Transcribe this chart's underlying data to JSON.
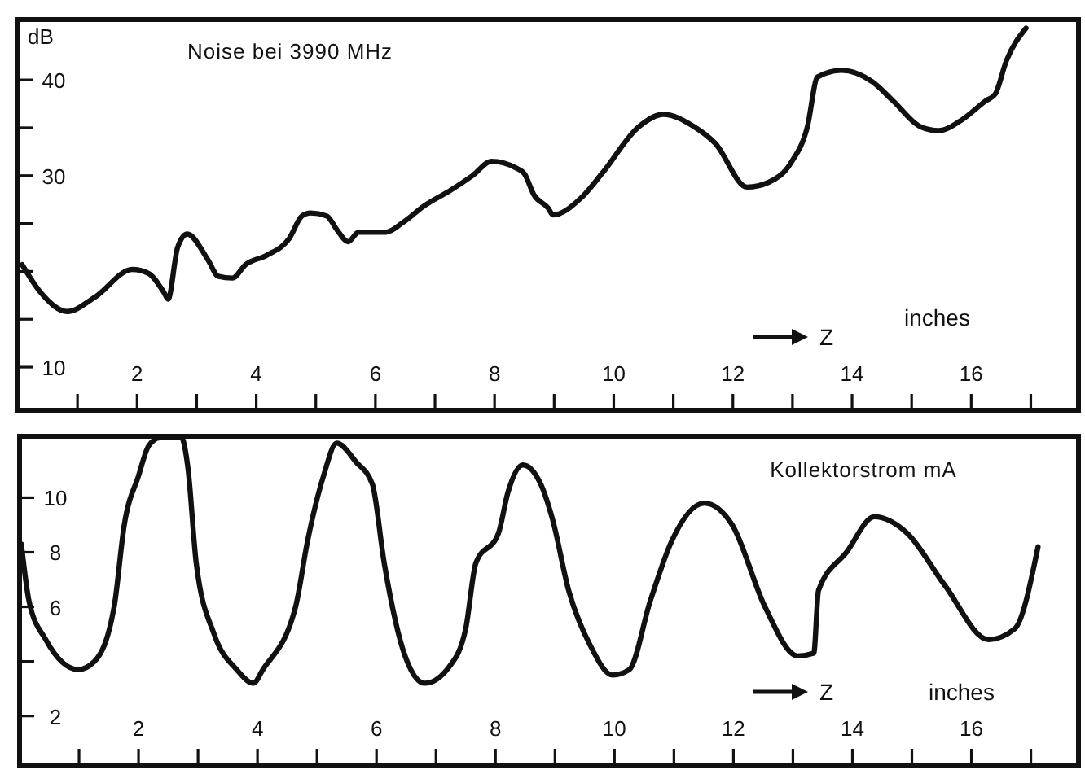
{
  "chart_data": [
    {
      "type": "line",
      "title": "Noise bei 3990 MHz",
      "ylabel": "dB",
      "xlabel": "Z",
      "annotations": [
        "inches"
      ],
      "xlim": [
        0,
        17.8
      ],
      "ylim": [
        5.5,
        46.3
      ],
      "xticks": [
        {
          "value": 1,
          "label": null
        },
        2,
        {
          "value": 3,
          "label": null
        },
        4,
        {
          "value": 5,
          "label": null
        },
        6,
        {
          "value": 7,
          "label": null
        },
        8,
        {
          "value": 9,
          "label": null
        },
        10,
        {
          "value": 11,
          "label": null
        },
        12,
        {
          "value": 13,
          "label": null
        },
        14,
        {
          "value": 15,
          "label": null
        },
        16,
        {
          "value": 17,
          "label": null
        }
      ],
      "yticks": [
        10,
        {
          "value": 15,
          "label": null
        },
        {
          "value": 20,
          "label": null
        },
        {
          "value": 25,
          "label": null
        },
        30,
        {
          "value": 35,
          "label": null
        },
        40
      ],
      "series": [
        {
          "color": "#111111",
          "x": [
            0.07,
            0.38,
            0.83,
            1.29,
            1.92,
            2.19,
            2.45,
            2.52,
            2.68,
            2.84,
            3.19,
            3.36,
            3.6,
            3.82,
            4.18,
            4.55,
            4.77,
            4.91,
            5.18,
            5.37,
            5.54,
            5.72,
            6.18,
            6.46,
            6.81,
            7.27,
            7.63,
            7.95,
            8.36,
            8.5,
            8.66,
            8.9,
            8.98,
            9.44,
            9.8,
            10.42,
            10.83,
            11.35,
            11.7,
            12.24,
            12.6,
            12.98,
            13.25,
            13.42,
            13.82,
            14.34,
            14.69,
            15.15,
            15.45,
            15.86,
            16.24,
            16.4,
            16.59,
            16.92
          ],
          "values": [
            20.7,
            17.8,
            15.8,
            17.3,
            20.2,
            19.8,
            17.8,
            17.1,
            22.5,
            23.9,
            21.2,
            19.5,
            19.3,
            20.7,
            21.7,
            23.4,
            25.8,
            26.1,
            25.8,
            24.2,
            23.1,
            24.1,
            24.1,
            25.1,
            26.8,
            28.5,
            30.0,
            31.5,
            30.8,
            30.2,
            28.0,
            26.6,
            25.9,
            27.6,
            30.2,
            35.1,
            36.4,
            35.1,
            33.4,
            28.8,
            29.3,
            31.4,
            35.1,
            40.3,
            41.0,
            39.8,
            37.8,
            35.1,
            34.7,
            35.9,
            37.8,
            38.5,
            42.0,
            45.4
          ]
        }
      ]
    },
    {
      "type": "line",
      "title": "Kollektorstrom mA",
      "xlabel": "Z",
      "annotations": [
        "inches"
      ],
      "xlim": [
        0,
        17.8
      ],
      "ylim": [
        0.2,
        12.25
      ],
      "xticks": [
        {
          "value": 1,
          "label": null
        },
        2,
        {
          "value": 3,
          "label": null
        },
        4,
        {
          "value": 5,
          "label": null
        },
        6,
        {
          "value": 7,
          "label": null
        },
        8,
        {
          "value": 9,
          "label": null
        },
        10,
        {
          "value": 11,
          "label": null
        },
        12,
        {
          "value": 13,
          "label": null
        },
        14,
        {
          "value": 15,
          "label": null
        },
        16,
        {
          "value": 17,
          "label": null
        }
      ],
      "yticks": [
        2,
        {
          "value": 4,
          "label": null
        },
        6,
        8,
        10
      ],
      "series": [
        {
          "color": "#111111",
          "x": [
            0.03,
            0.16,
            0.44,
            0.99,
            1.26,
            1.59,
            1.76,
            2.0,
            2.17,
            2.36,
            2.72,
            2.83,
            2.97,
            3.27,
            3.65,
            3.93,
            4.09,
            4.64,
            4.84,
            5.11,
            5.33,
            5.66,
            5.93,
            6.13,
            6.48,
            6.81,
            7.22,
            7.5,
            7.67,
            8.05,
            8.21,
            8.46,
            8.76,
            8.96,
            9.23,
            9.59,
            9.97,
            10.25,
            10.6,
            10.96,
            11.51,
            11.98,
            12.53,
            13.08,
            13.35,
            13.43,
            13.9,
            14.37,
            14.92,
            15.55,
            16.29,
            16.73,
            17.12
          ],
          "values": [
            8.3,
            6.2,
            4.8,
            3.7,
            4.0,
            6.0,
            9.0,
            10.8,
            11.9,
            12.2,
            12.2,
            11.1,
            7.6,
            5.0,
            3.7,
            3.2,
            3.7,
            6.0,
            8.4,
            10.8,
            12.0,
            11.3,
            10.5,
            7.6,
            4.2,
            3.2,
            3.8,
            5.2,
            7.6,
            8.7,
            10.2,
            11.2,
            10.5,
            9.2,
            6.6,
            4.6,
            3.5,
            3.7,
            6.2,
            8.4,
            9.8,
            9.0,
            6.0,
            4.2,
            4.3,
            6.6,
            8.0,
            9.3,
            8.7,
            6.8,
            4.8,
            5.2,
            8.2
          ]
        }
      ]
    }
  ]
}
